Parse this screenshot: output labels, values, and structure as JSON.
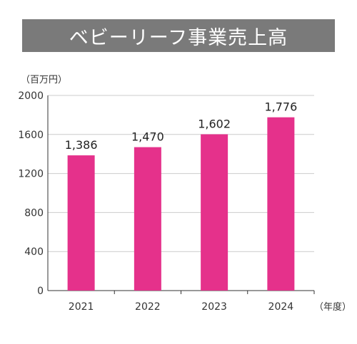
{
  "header": {
    "title": "ベビーリーフ事業売上高"
  },
  "colors": {
    "bar": "#e5318b",
    "title_bg": "#7a7a7a",
    "grid": "#cccccc",
    "axis": "#333333"
  },
  "chart_data": {
    "type": "bar",
    "title": "ベビーリーフ事業売上高",
    "ylabel": "（百万円）",
    "xlabel": "（年度）",
    "categories": [
      "2021",
      "2022",
      "2023",
      "2024"
    ],
    "values": [
      1386,
      1470,
      1602,
      1776
    ],
    "value_labels": [
      "1,386",
      "1,470",
      "1,602",
      "1,776"
    ],
    "yticks": [
      0,
      400,
      800,
      1200,
      1600,
      2000
    ],
    "ytick_labels": [
      "0",
      "400",
      "800",
      "1200",
      "1600",
      "2000"
    ],
    "ylim": [
      0,
      2000
    ],
    "grid": true,
    "legend": "none"
  }
}
